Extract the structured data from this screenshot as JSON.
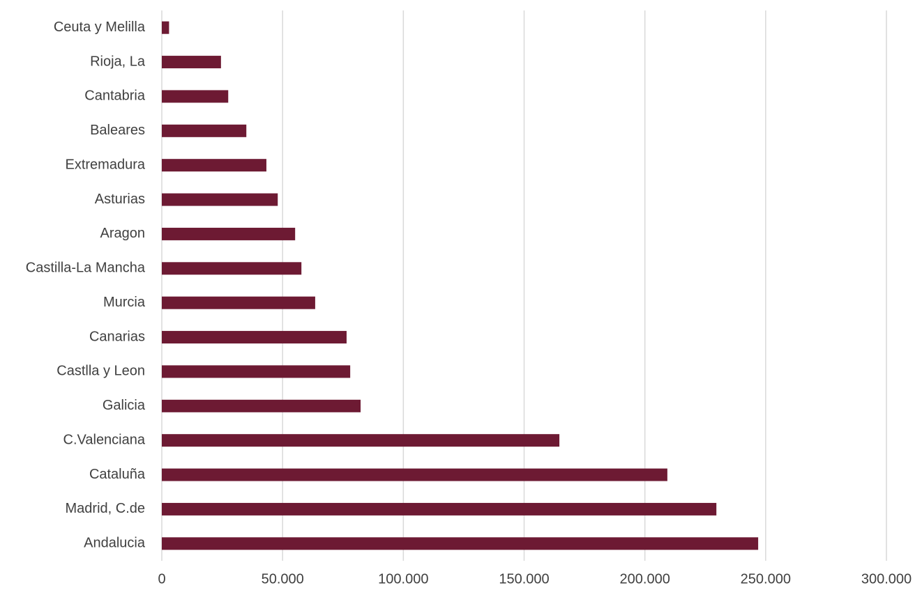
{
  "chart_data": {
    "type": "bar",
    "orientation": "horizontal",
    "categories": [
      "Ceuta y Melilla",
      "Rioja, La",
      "Cantabria",
      "Baleares",
      "Extremadura",
      "Asturias",
      "Aragon",
      "Castilla-La Mancha",
      "Murcia",
      "Canarias",
      "Castlla y Leon",
      "Galicia",
      "C.Valenciana",
      "Cataluña",
      "Madrid, C.de",
      "Andalucia"
    ],
    "values": [
      3000,
      24500,
      27500,
      35000,
      43300,
      48000,
      55200,
      57800,
      63500,
      76500,
      78000,
      82300,
      164600,
      209300,
      229600,
      246900
    ],
    "color": "#6d1a33",
    "xlim": [
      0,
      300000
    ],
    "xticks": [
      0,
      {
        "value": 50000,
        "label": "50.000"
      },
      {
        "value": 100000,
        "label": "100.000"
      },
      {
        "value": 150000,
        "label": "150.000"
      },
      {
        "value": 200000,
        "label": "200.000"
      },
      {
        "value": 250000,
        "label": "250.000"
      },
      {
        "value": 300000,
        "label": "300.000"
      }
    ],
    "grid": true
  }
}
